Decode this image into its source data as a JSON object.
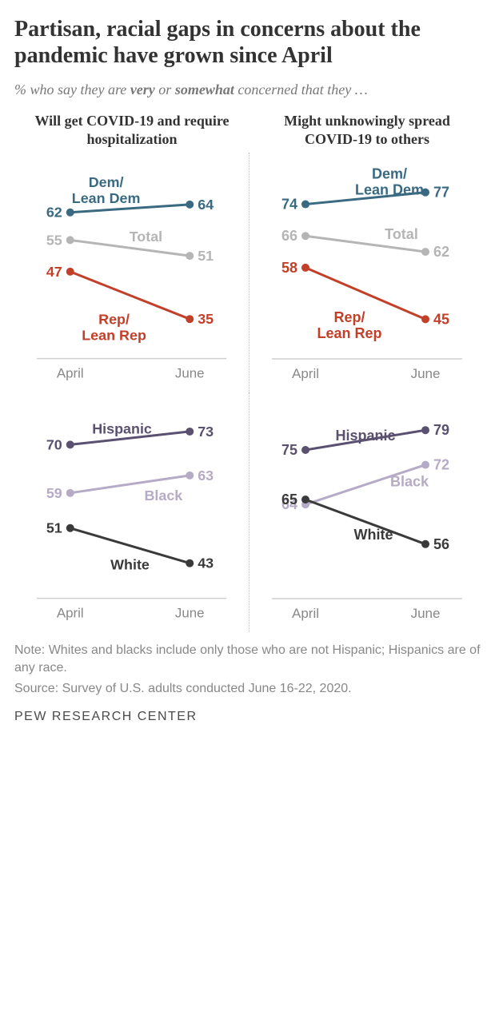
{
  "title": "Partisan, racial gaps in concerns about the pandemic have grown since April",
  "subtitle_a": "% who say they are ",
  "subtitle_b": "very",
  "subtitle_c": " or ",
  "subtitle_d": "somewhat",
  "subtitle_e": " concerned that they …",
  "columns": {
    "left": "Will get COVID-19 and require hospitalization",
    "right": "Might unknowingly spread COVID-19 to others"
  },
  "x_labels": [
    "April",
    "June"
  ],
  "colors": {
    "dem": "#3a6a82",
    "rep": "#c24029",
    "total": "#b5b5b5",
    "hispanic": "#5a506f",
    "black": "#b6abc6",
    "white": "#3a3a3a",
    "axis": "#cfcfcf",
    "tick_text": "#888888"
  },
  "panels": {
    "top_left": {
      "ylim": [
        25,
        75
      ],
      "series": [
        {
          "name": "Dem/\nLean Dem",
          "colorKey": "dem",
          "vals": [
            62,
            64
          ],
          "labelPos": "above-left"
        },
        {
          "name": "Total",
          "colorKey": "total",
          "vals": [
            55,
            51
          ],
          "labelPos": "mid-above"
        },
        {
          "name": "Rep/\nLean Rep",
          "colorKey": "rep",
          "vals": [
            47,
            35
          ],
          "labelPos": "below-mid"
        }
      ]
    },
    "top_right": {
      "ylim": [
        35,
        85
      ],
      "series": [
        {
          "name": "Dem/\nLean Dem",
          "colorKey": "dem",
          "vals": [
            74,
            77
          ],
          "labelPos": "above-right"
        },
        {
          "name": "Total",
          "colorKey": "total",
          "vals": [
            66,
            62
          ],
          "labelPos": "mid-above-right"
        },
        {
          "name": "Rep/\nLean Rep",
          "colorKey": "rep",
          "vals": [
            58,
            45
          ],
          "labelPos": "below-mid"
        }
      ]
    },
    "bot_left": {
      "ylim": [
        35,
        80
      ],
      "series": [
        {
          "name": "Hispanic",
          "colorKey": "hispanic",
          "vals": [
            70,
            73
          ],
          "labelPos": "above-left-h"
        },
        {
          "name": "Black",
          "colorKey": "black",
          "vals": [
            59,
            63
          ],
          "labelPos": "mid-below-b"
        },
        {
          "name": "White",
          "colorKey": "white",
          "vals": [
            51,
            43
          ],
          "labelPos": "below-mid-w"
        }
      ]
    },
    "bot_right": {
      "ylim": [
        45,
        85
      ],
      "series": [
        {
          "name": "Hispanic",
          "colorKey": "hispanic",
          "vals": [
            75,
            79
          ],
          "labelPos": "above-mid-h"
        },
        {
          "name": "Black",
          "colorKey": "black",
          "vals": [
            64,
            72
          ],
          "labelPos": "right-mid-b"
        },
        {
          "name": "White",
          "colorKey": "white",
          "vals": [
            65,
            56
          ],
          "labelPos": "below-mid-w2"
        }
      ]
    }
  },
  "note": "Note: Whites and blacks include only those who are not Hispanic; Hispanics are of any race.",
  "source": "Source: Survey of U.S. adults conducted June 16-22, 2020.",
  "brand": "PEW RESEARCH CENTER"
}
